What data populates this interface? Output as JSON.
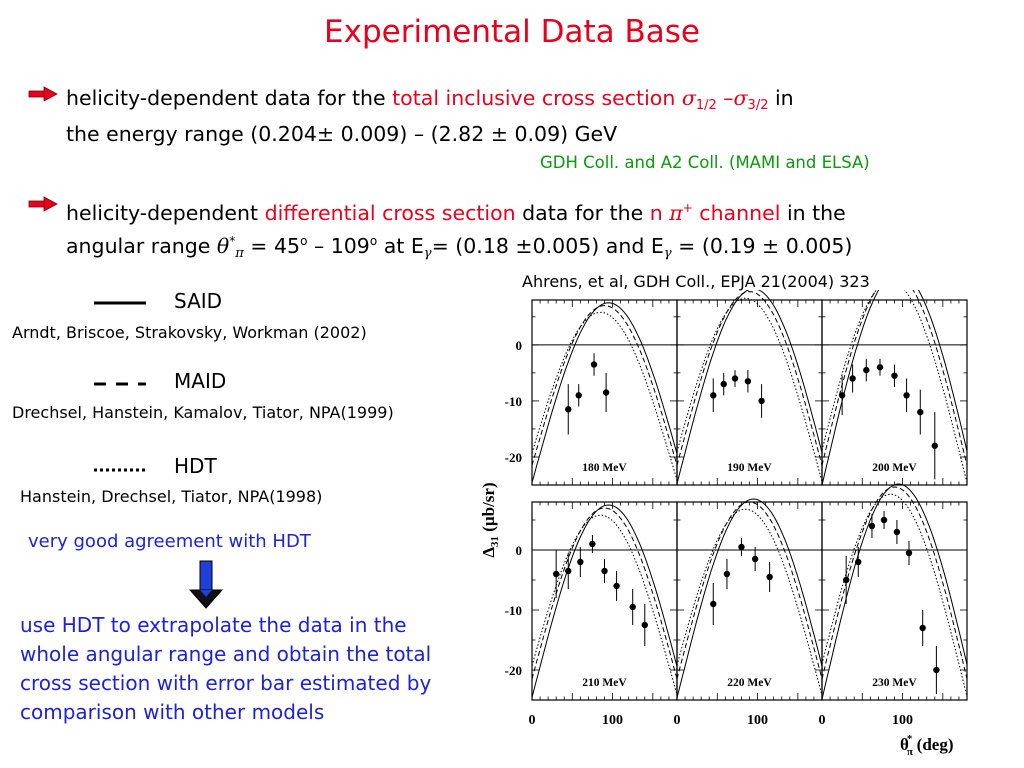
{
  "title": "Experimental Data Base",
  "bullets": [
    {
      "line1_pre": "helicity-dependent data for the ",
      "line1_red": "total inclusive cross section ",
      "sigma": "σ",
      "sub_1": "1/2",
      "minus": " –",
      "sub_2": "3/2",
      "line1_post": " in",
      "line2_pre": "the energy range (0.204",
      "pm": "±",
      "line2_mid": "0.009) – (2.82 ",
      "line2_post": "0.09) GeV"
    },
    {
      "line1_pre": "helicity-dependent ",
      "line1_red": "differential cross section",
      "line1_mid": " data for the ",
      "channel_n": "n ",
      "pi": "π",
      "plus": "+",
      "channel_word": " channel",
      "line1_post": " in the",
      "line2_pre": "angular range ",
      "theta": "θ",
      "star": "*",
      "line2_a": " = 45",
      "deg": "o",
      "line2_b": " – 109",
      "line2_c": " at E",
      "gamma": "γ",
      "line2_d": "= (0.18 ",
      "pm": "±",
      "line2_e": "0.005) and E",
      "line2_f": " = (0.19 ",
      "line2_g": "0.005)"
    }
  ],
  "gdh_credit": "GDH Coll. and A2 Coll. (MAMI and ELSA)",
  "plot_reference": "Ahrens, et al, GDH Coll., EPJA 21(2004) 323",
  "legend": [
    {
      "name": "SAID",
      "ref": "Arndt, Briscoe, Strakovsky, Workman (2002)",
      "style": "solid"
    },
    {
      "name": "MAID",
      "ref": "Drechsel, Hanstein, Kamalov, Tiator, NPA(1999)",
      "style": "dashed"
    },
    {
      "name": "HDT",
      "ref": "Hanstein, Drechsel, Tiator, NPA(1998)",
      "style": "dotted"
    }
  ],
  "agreement_note": "very good agreement with HDT",
  "conclusion_lines": [
    "use HDT to extrapolate the data in the",
    "whole angular range and obtain the total",
    "cross section with error bar estimated by",
    "comparison with other models"
  ],
  "colors": {
    "title": "#e8001c",
    "green": "#0a9a0a",
    "blue": "#1e22d6",
    "arrow_red": "#e8001c",
    "arrow_blue": "#1f3fd8"
  },
  "chart_data": {
    "type": "scatter",
    "ylabel": "Δ31 (μb/sr)",
    "ylabel_main": "Δ",
    "ylabel_sub": "31",
    "ylabel_unit": " (μb/sr)",
    "xlabel_sym": "θ",
    "xlabel_sub": "π",
    "xlabel_sup": "*",
    "xlabel_unit": " (deg)",
    "xlim": [
      0,
      180
    ],
    "ylim": [
      -25,
      8
    ],
    "x_ticks": [
      0,
      100
    ],
    "y_ticks": [
      0,
      -10,
      -20
    ],
    "x_tick_labels": [
      "0",
      "100"
    ],
    "y_tick_labels": [
      "0",
      "-10",
      "-20"
    ],
    "panels": [
      {
        "label": "180 MeV",
        "points": [
          [
            45,
            -11.5,
            4.5
          ],
          [
            58,
            -9,
            2
          ],
          [
            77,
            -3.5,
            2
          ],
          [
            92,
            -8.5,
            3.5
          ]
        ],
        "curve_amp": 7.5
      },
      {
        "label": "190 MeV",
        "points": [
          [
            45,
            -9,
            3
          ],
          [
            58,
            -7,
            2
          ],
          [
            72,
            -6,
            1.5
          ],
          [
            88,
            -6.5,
            2
          ],
          [
            105,
            -10,
            3
          ]
        ],
        "curve_amp": 10
      },
      {
        "label": "200 MeV",
        "points": [
          [
            25,
            -9,
            3.5
          ],
          [
            38,
            -6,
            2.5
          ],
          [
            55,
            -4.5,
            2
          ],
          [
            72,
            -4,
            1.5
          ],
          [
            90,
            -5.5,
            2
          ],
          [
            105,
            -9,
            3
          ],
          [
            122,
            -12,
            4
          ],
          [
            140,
            -18,
            6
          ]
        ],
        "curve_amp": 13
      },
      {
        "label": "210 MeV",
        "points": [
          [
            30,
            -4,
            4
          ],
          [
            45,
            -3.5,
            3
          ],
          [
            60,
            -2,
            2.5
          ],
          [
            75,
            1,
            1.5
          ],
          [
            90,
            -3.5,
            2
          ],
          [
            105,
            -6,
            2.5
          ],
          [
            125,
            -9.5,
            3
          ],
          [
            140,
            -12.5,
            3.5
          ]
        ],
        "curve_amp": 7.5
      },
      {
        "label": "220 MeV",
        "points": [
          [
            45,
            -9,
            3.5
          ],
          [
            62,
            -4,
            2.5
          ],
          [
            80,
            0.5,
            1.5
          ],
          [
            97,
            -1.5,
            2
          ],
          [
            115,
            -4.5,
            2.5
          ]
        ],
        "curve_amp": 8.5
      },
      {
        "label": "230 MeV",
        "points": [
          [
            30,
            -5,
            4
          ],
          [
            45,
            -2,
            2.5
          ],
          [
            62,
            4,
            2
          ],
          [
            77,
            5,
            1.5
          ],
          [
            93,
            3,
            2
          ],
          [
            108,
            -0.5,
            2
          ],
          [
            125,
            -13,
            3
          ],
          [
            142,
            -20,
            4
          ]
        ],
        "curve_amp": 11
      }
    ]
  }
}
